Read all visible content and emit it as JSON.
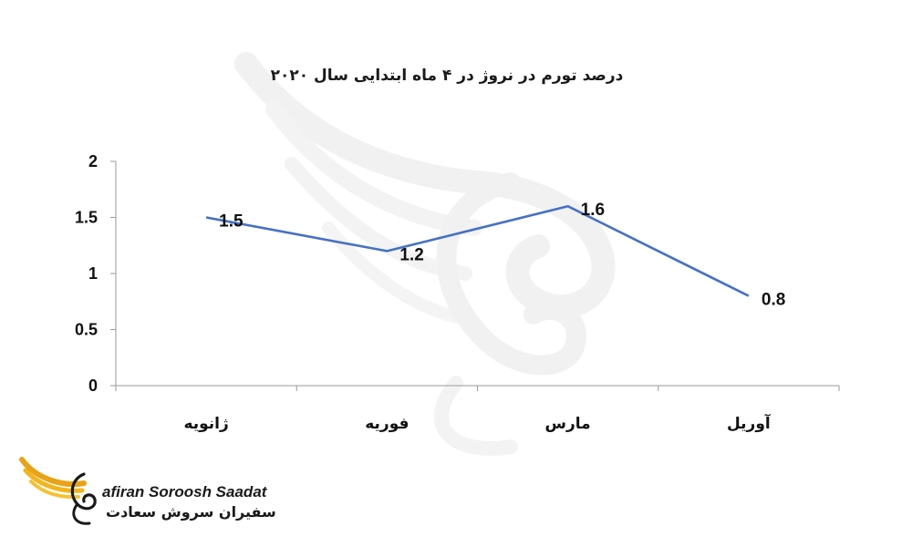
{
  "chart_data": {
    "type": "line",
    "title": "درصد تورم در نروژ در ۴ ماه ابتدایی سال ۲۰۲۰",
    "categories": [
      "ژانویه",
      "فوریه",
      "مارس",
      "آوریل"
    ],
    "series": [
      {
        "values": [
          1.5,
          1.2,
          1.6,
          0.8
        ]
      }
    ],
    "data_labels": [
      "1.5",
      "1.2",
      "1.6",
      "0.8"
    ],
    "yticks": [
      "0",
      "0.5",
      "1",
      "1.5",
      "2"
    ],
    "ylim": [
      0,
      2
    ],
    "grid": false,
    "legend": "none",
    "colors": {
      "line": "#4472C4",
      "axis": "#9a9a9a",
      "watermark": "#f3f3f3"
    }
  },
  "brand": {
    "name_en": "afiran Soroosh Saadat",
    "name_fa": "سفیران سروش سعادت",
    "logo_icon": "golden-wing-swan-logo"
  }
}
